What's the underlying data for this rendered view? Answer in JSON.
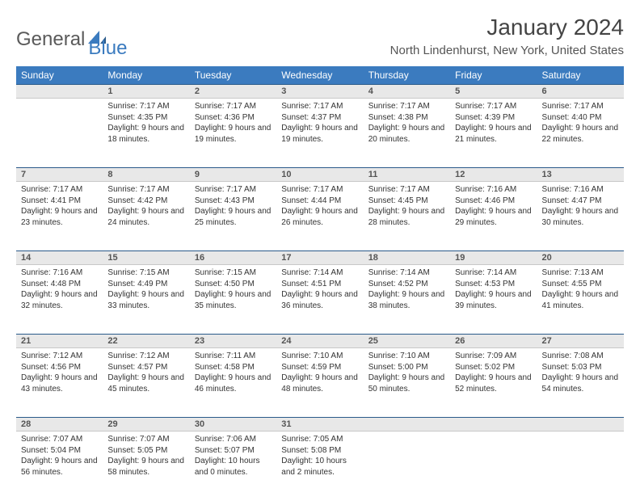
{
  "brand": {
    "part1": "General",
    "part2": "Blue"
  },
  "title": "January 2024",
  "location": "North Lindenhurst, New York, United States",
  "colors": {
    "header_bg": "#3b7bbf",
    "header_text": "#ffffff",
    "daynum_bg": "#e8e8e8",
    "row_divider": "#2a5a8a",
    "body_bg": "#ffffff",
    "text": "#333333"
  },
  "weekdays": [
    "Sunday",
    "Monday",
    "Tuesday",
    "Wednesday",
    "Thursday",
    "Friday",
    "Saturday"
  ],
  "weeks": [
    {
      "nums": [
        "",
        "1",
        "2",
        "3",
        "4",
        "5",
        "6"
      ],
      "cells": [
        "",
        "Sunrise: 7:17 AM\nSunset: 4:35 PM\nDaylight: 9 hours and 18 minutes.",
        "Sunrise: 7:17 AM\nSunset: 4:36 PM\nDaylight: 9 hours and 19 minutes.",
        "Sunrise: 7:17 AM\nSunset: 4:37 PM\nDaylight: 9 hours and 19 minutes.",
        "Sunrise: 7:17 AM\nSunset: 4:38 PM\nDaylight: 9 hours and 20 minutes.",
        "Sunrise: 7:17 AM\nSunset: 4:39 PM\nDaylight: 9 hours and 21 minutes.",
        "Sunrise: 7:17 AM\nSunset: 4:40 PM\nDaylight: 9 hours and 22 minutes."
      ]
    },
    {
      "nums": [
        "7",
        "8",
        "9",
        "10",
        "11",
        "12",
        "13"
      ],
      "cells": [
        "Sunrise: 7:17 AM\nSunset: 4:41 PM\nDaylight: 9 hours and 23 minutes.",
        "Sunrise: 7:17 AM\nSunset: 4:42 PM\nDaylight: 9 hours and 24 minutes.",
        "Sunrise: 7:17 AM\nSunset: 4:43 PM\nDaylight: 9 hours and 25 minutes.",
        "Sunrise: 7:17 AM\nSunset: 4:44 PM\nDaylight: 9 hours and 26 minutes.",
        "Sunrise: 7:17 AM\nSunset: 4:45 PM\nDaylight: 9 hours and 28 minutes.",
        "Sunrise: 7:16 AM\nSunset: 4:46 PM\nDaylight: 9 hours and 29 minutes.",
        "Sunrise: 7:16 AM\nSunset: 4:47 PM\nDaylight: 9 hours and 30 minutes."
      ]
    },
    {
      "nums": [
        "14",
        "15",
        "16",
        "17",
        "18",
        "19",
        "20"
      ],
      "cells": [
        "Sunrise: 7:16 AM\nSunset: 4:48 PM\nDaylight: 9 hours and 32 minutes.",
        "Sunrise: 7:15 AM\nSunset: 4:49 PM\nDaylight: 9 hours and 33 minutes.",
        "Sunrise: 7:15 AM\nSunset: 4:50 PM\nDaylight: 9 hours and 35 minutes.",
        "Sunrise: 7:14 AM\nSunset: 4:51 PM\nDaylight: 9 hours and 36 minutes.",
        "Sunrise: 7:14 AM\nSunset: 4:52 PM\nDaylight: 9 hours and 38 minutes.",
        "Sunrise: 7:14 AM\nSunset: 4:53 PM\nDaylight: 9 hours and 39 minutes.",
        "Sunrise: 7:13 AM\nSunset: 4:55 PM\nDaylight: 9 hours and 41 minutes."
      ]
    },
    {
      "nums": [
        "21",
        "22",
        "23",
        "24",
        "25",
        "26",
        "27"
      ],
      "cells": [
        "Sunrise: 7:12 AM\nSunset: 4:56 PM\nDaylight: 9 hours and 43 minutes.",
        "Sunrise: 7:12 AM\nSunset: 4:57 PM\nDaylight: 9 hours and 45 minutes.",
        "Sunrise: 7:11 AM\nSunset: 4:58 PM\nDaylight: 9 hours and 46 minutes.",
        "Sunrise: 7:10 AM\nSunset: 4:59 PM\nDaylight: 9 hours and 48 minutes.",
        "Sunrise: 7:10 AM\nSunset: 5:00 PM\nDaylight: 9 hours and 50 minutes.",
        "Sunrise: 7:09 AM\nSunset: 5:02 PM\nDaylight: 9 hours and 52 minutes.",
        "Sunrise: 7:08 AM\nSunset: 5:03 PM\nDaylight: 9 hours and 54 minutes."
      ]
    },
    {
      "nums": [
        "28",
        "29",
        "30",
        "31",
        "",
        "",
        ""
      ],
      "cells": [
        "Sunrise: 7:07 AM\nSunset: 5:04 PM\nDaylight: 9 hours and 56 minutes.",
        "Sunrise: 7:07 AM\nSunset: 5:05 PM\nDaylight: 9 hours and 58 minutes.",
        "Sunrise: 7:06 AM\nSunset: 5:07 PM\nDaylight: 10 hours and 0 minutes.",
        "Sunrise: 7:05 AM\nSunset: 5:08 PM\nDaylight: 10 hours and 2 minutes.",
        "",
        "",
        ""
      ]
    }
  ]
}
